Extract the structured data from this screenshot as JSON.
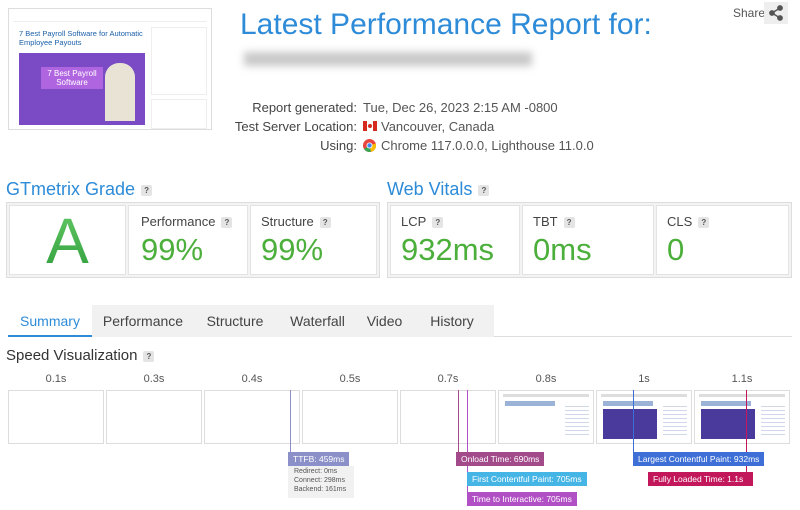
{
  "header": {
    "share": "Share",
    "title": "Latest Performance Report for:",
    "thumbnail": {
      "title": "7 Best Payroll Software for Automatic Employee Payouts",
      "banner": "7 Best Payroll Software"
    }
  },
  "report": {
    "rows": [
      {
        "label": "Report generated:",
        "value": "Tue, Dec 26, 2023 2:15 AM -0800"
      },
      {
        "label": "Test Server Location:",
        "value": "Vancouver, Canada"
      },
      {
        "label": "Using:",
        "value": "Chrome 117.0.0.0, Lighthouse 11.0.0"
      }
    ]
  },
  "help_icon": "?",
  "grade": {
    "title": "GTmetrix Grade",
    "grade": "A",
    "metrics": [
      {
        "label": "Performance",
        "value": "99%"
      },
      {
        "label": "Structure",
        "value": "99%"
      }
    ]
  },
  "web_vitals": {
    "title": "Web Vitals",
    "metrics": [
      {
        "label": "LCP",
        "value": "932ms"
      },
      {
        "label": "TBT",
        "value": "0ms"
      },
      {
        "label": "CLS",
        "value": "0"
      }
    ]
  },
  "tabs": [
    "Summary",
    "Performance",
    "Structure",
    "Waterfall",
    "Video",
    "History"
  ],
  "speed_visualization": {
    "title": "Speed Visualization",
    "times": [
      "0.1s",
      "0.3s",
      "0.4s",
      "0.5s",
      "0.7s",
      "0.8s",
      "1s",
      "1.1s"
    ],
    "markers": [
      {
        "label": "TTFB: 459ms",
        "details": [
          "Redirect: 0ms",
          "Connect: 298ms",
          "Backend: 161ms"
        ]
      },
      {
        "label": "Onload Time: 690ms"
      },
      {
        "label": "First Contentful Paint: 705ms"
      },
      {
        "label": "Time to Interactive: 705ms"
      },
      {
        "label": "Largest Contentful Paint: 932ms"
      },
      {
        "label": "Fully Loaded Time: 1.1s"
      }
    ]
  }
}
